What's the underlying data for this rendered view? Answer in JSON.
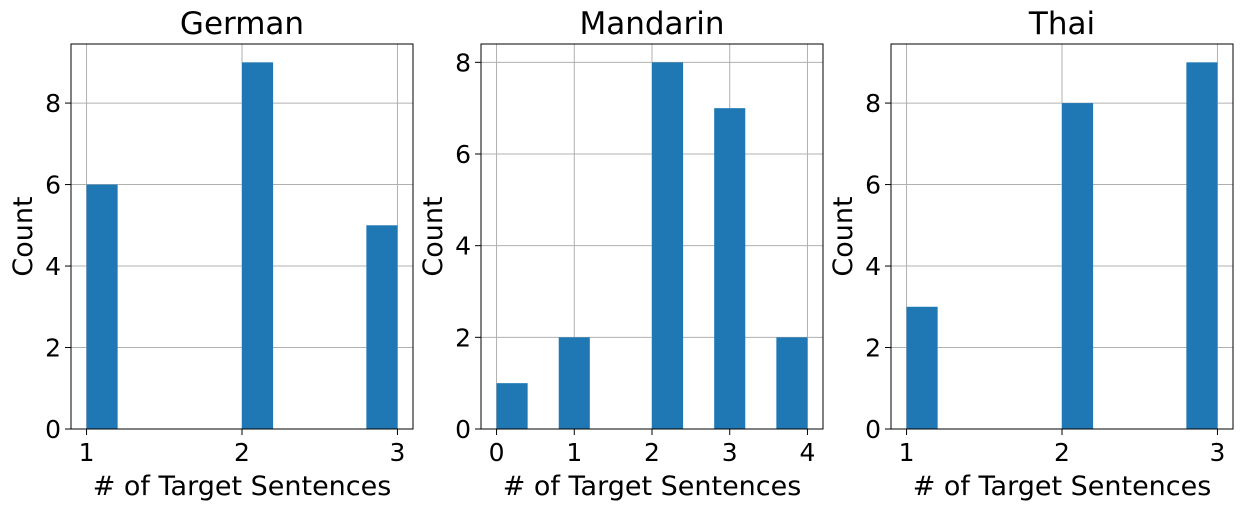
{
  "chart_data": [
    {
      "type": "bar",
      "title": "German",
      "xlabel": "# of Target Sentences",
      "ylabel": "Count",
      "grid": true,
      "color": "#1f77b4",
      "xlim": [
        0.9,
        3.1
      ],
      "ylim": [
        0,
        9.45
      ],
      "xticks": [
        1,
        2,
        3
      ],
      "yticks": [
        0,
        2,
        4,
        6,
        8
      ],
      "bins": [
        {
          "x0": 1.0,
          "x1": 1.2,
          "value": 6
        },
        {
          "x0": 2.0,
          "x1": 2.2,
          "value": 9
        },
        {
          "x0": 2.8,
          "x1": 3.0,
          "value": 5
        }
      ]
    },
    {
      "type": "bar",
      "title": "Mandarin",
      "xlabel": "# of Target Sentences",
      "ylabel": "Count",
      "grid": true,
      "color": "#1f77b4",
      "xlim": [
        -0.2,
        4.2
      ],
      "ylim": [
        0,
        8.4
      ],
      "xticks": [
        0,
        1,
        2,
        3,
        4
      ],
      "yticks": [
        0,
        2,
        4,
        6,
        8
      ],
      "bins": [
        {
          "x0": 0.0,
          "x1": 0.4,
          "value": 1
        },
        {
          "x0": 0.8,
          "x1": 1.2,
          "value": 2
        },
        {
          "x0": 2.0,
          "x1": 2.4,
          "value": 8
        },
        {
          "x0": 2.8,
          "x1": 3.2,
          "value": 7
        },
        {
          "x0": 3.6,
          "x1": 4.0,
          "value": 2
        }
      ]
    },
    {
      "type": "bar",
      "title": "Thai",
      "xlabel": "# of Target Sentences",
      "ylabel": "Count",
      "grid": true,
      "color": "#1f77b4",
      "xlim": [
        0.9,
        3.1
      ],
      "ylim": [
        0,
        9.45
      ],
      "xticks": [
        1,
        2,
        3
      ],
      "yticks": [
        0,
        2,
        4,
        6,
        8
      ],
      "bins": [
        {
          "x0": 1.0,
          "x1": 1.2,
          "value": 3
        },
        {
          "x0": 2.0,
          "x1": 2.2,
          "value": 8
        },
        {
          "x0": 2.8,
          "x1": 3.0,
          "value": 9
        }
      ]
    }
  ]
}
